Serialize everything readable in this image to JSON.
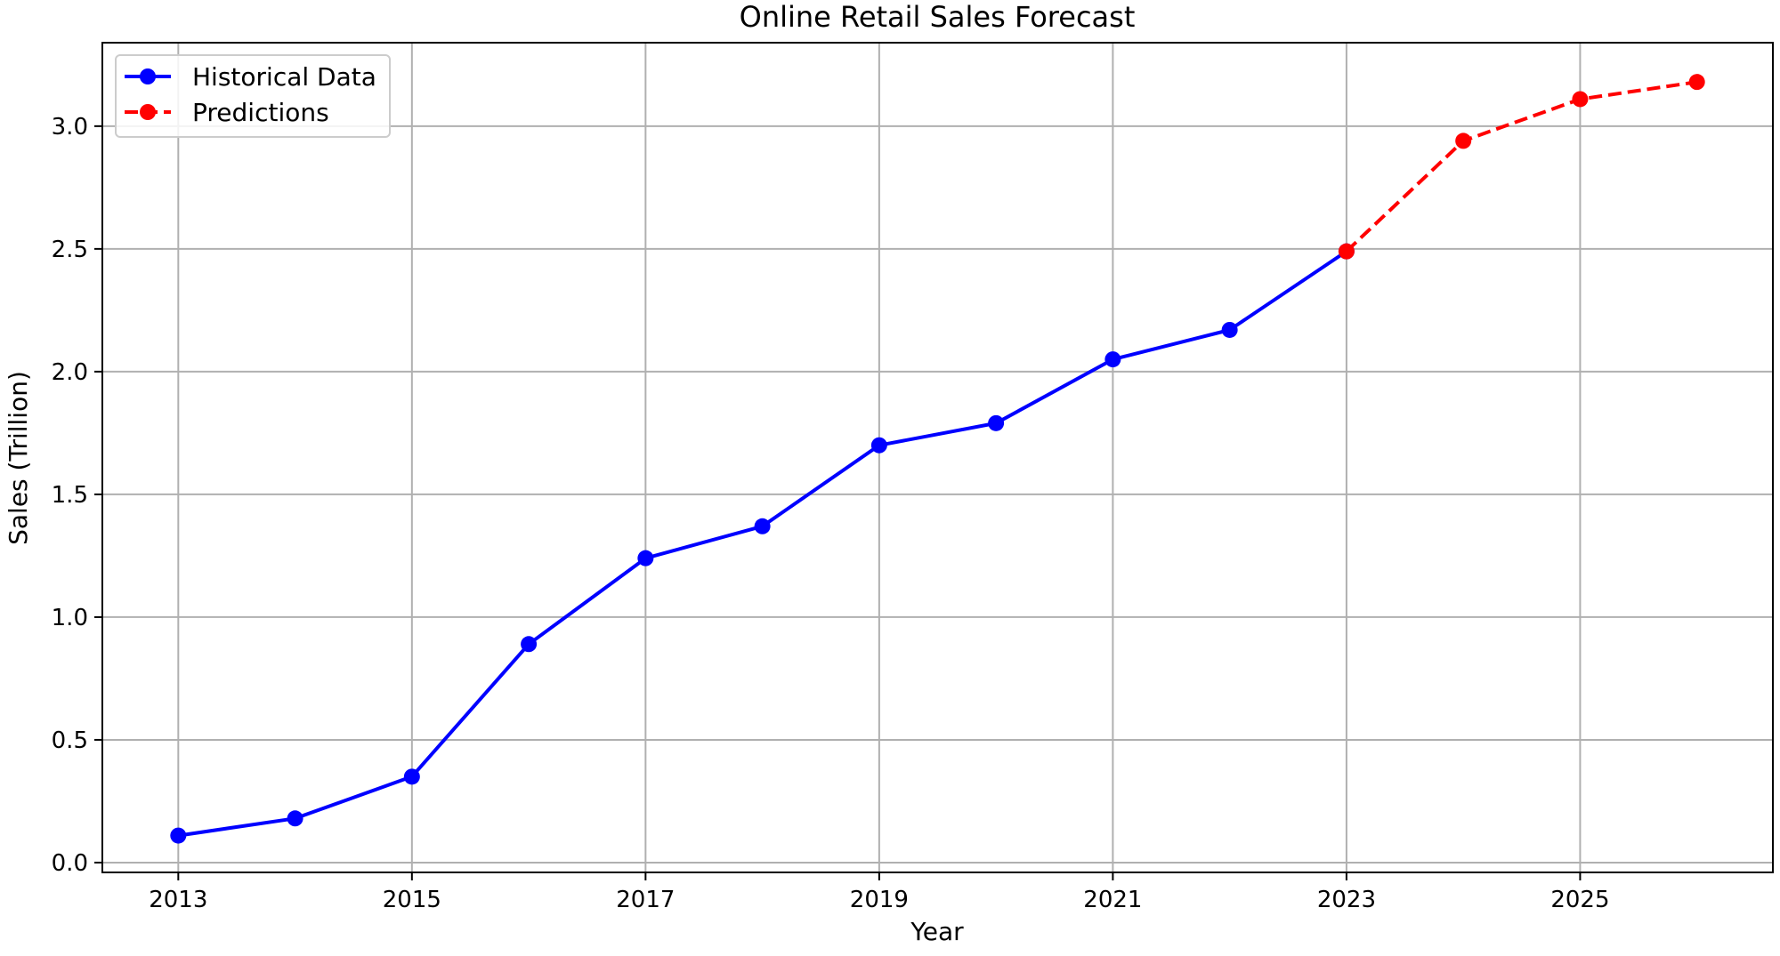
{
  "chart_data": {
    "type": "line",
    "title": "Online Retail Sales Forecast",
    "xlabel": "Year",
    "ylabel": "Sales (Trillion)",
    "xlim": [
      2012.35,
      2026.65
    ],
    "ylim": [
      -0.04,
      3.34
    ],
    "xticks": [
      2013,
      2015,
      2017,
      2019,
      2021,
      2023,
      2025
    ],
    "yticks": [
      0.0,
      0.5,
      1.0,
      1.5,
      2.0,
      2.5,
      3.0
    ],
    "ytick_labels": [
      "0.0",
      "0.5",
      "1.0",
      "1.5",
      "2.0",
      "2.5",
      "3.0"
    ],
    "grid": true,
    "legend_position": "upper-left",
    "series": [
      {
        "name": "Historical Data",
        "color": "#0000ff",
        "linestyle": "solid",
        "marker": "circle",
        "x": [
          2013,
          2014,
          2015,
          2016,
          2017,
          2018,
          2019,
          2020,
          2021,
          2022,
          2023
        ],
        "y": [
          0.11,
          0.18,
          0.35,
          0.89,
          1.24,
          1.37,
          1.7,
          1.79,
          2.05,
          2.17,
          2.49
        ]
      },
      {
        "name": "Predictions",
        "color": "#ff0000",
        "linestyle": "dashed",
        "marker": "circle",
        "x": [
          2023,
          2024,
          2025,
          2026
        ],
        "y": [
          2.49,
          2.94,
          3.11,
          3.18
        ]
      }
    ]
  }
}
